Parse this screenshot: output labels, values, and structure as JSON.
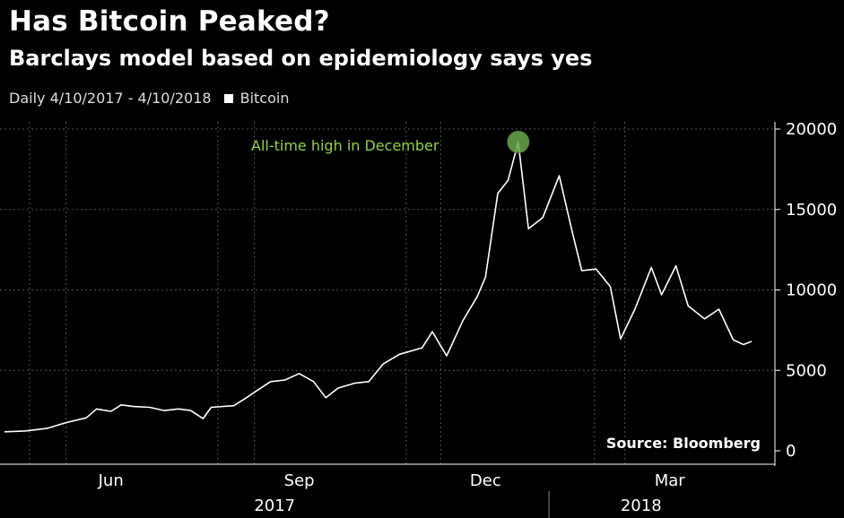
{
  "header": {
    "title": "Has Bitcoin Peaked?",
    "subtitle": "Barclays model based on epidemiology says yes",
    "range_label": "Daily 4/10/2017 - 4/10/2018",
    "legend_label": "Bitcoin"
  },
  "annotation": {
    "text": "All-time high in December",
    "color": "#8fd14f"
  },
  "source": "Source: Bloomberg",
  "colors": {
    "background": "#000000",
    "line": "#ffffff",
    "grid": "#555555",
    "highlight": "#6aa84f"
  },
  "chart_data": {
    "type": "line",
    "title": "Has Bitcoin Peaked?",
    "subtitle": "Barclays model based on epidemiology says yes",
    "x_range": [
      "2017-04-10",
      "2018-04-10"
    ],
    "ylim": [
      0,
      20000
    ],
    "y_ticks": [
      "0",
      "5000",
      "10000",
      "15000",
      "20000"
    ],
    "y_tick_values": [
      0,
      5000,
      10000,
      15000,
      20000
    ],
    "x_month_labels": [
      {
        "label": "Jun",
        "date": "2017-06-01"
      },
      {
        "label": "Sep",
        "date": "2017-09-01"
      },
      {
        "label": "Dec",
        "date": "2017-12-01"
      },
      {
        "label": "Mar",
        "date": "2018-03-01"
      }
    ],
    "x_year_labels": [
      {
        "label": "2017",
        "date": "2017-08-20"
      },
      {
        "label": "2018",
        "date": "2018-02-15"
      }
    ],
    "grid": true,
    "legend_position": "top-left",
    "series": [
      {
        "name": "Bitcoin",
        "points": [
          [
            "2017-04-10",
            1180
          ],
          [
            "2017-04-20",
            1230
          ],
          [
            "2017-05-01",
            1400
          ],
          [
            "2017-05-10",
            1750
          ],
          [
            "2017-05-20",
            2050
          ],
          [
            "2017-05-25",
            2600
          ],
          [
            "2017-06-01",
            2450
          ],
          [
            "2017-06-06",
            2850
          ],
          [
            "2017-06-12",
            2750
          ],
          [
            "2017-06-20",
            2700
          ],
          [
            "2017-06-27",
            2500
          ],
          [
            "2017-07-04",
            2600
          ],
          [
            "2017-07-10",
            2500
          ],
          [
            "2017-07-16",
            2000
          ],
          [
            "2017-07-20",
            2700
          ],
          [
            "2017-07-31",
            2800
          ],
          [
            "2017-08-05",
            3200
          ],
          [
            "2017-08-12",
            3800
          ],
          [
            "2017-08-18",
            4300
          ],
          [
            "2017-08-25",
            4400
          ],
          [
            "2017-09-01",
            4800
          ],
          [
            "2017-09-08",
            4300
          ],
          [
            "2017-09-14",
            3300
          ],
          [
            "2017-09-20",
            3900
          ],
          [
            "2017-09-28",
            4200
          ],
          [
            "2017-10-05",
            4300
          ],
          [
            "2017-10-12",
            5400
          ],
          [
            "2017-10-20",
            6000
          ],
          [
            "2017-10-31",
            6400
          ],
          [
            "2017-11-05",
            7400
          ],
          [
            "2017-11-12",
            5900
          ],
          [
            "2017-11-20",
            8100
          ],
          [
            "2017-11-27",
            9600
          ],
          [
            "2017-12-01",
            10800
          ],
          [
            "2017-12-07",
            16000
          ],
          [
            "2017-12-12",
            16800
          ],
          [
            "2017-12-17",
            19200
          ],
          [
            "2017-12-22",
            13800
          ],
          [
            "2017-12-29",
            14500
          ],
          [
            "2018-01-06",
            17100
          ],
          [
            "2018-01-12",
            13800
          ],
          [
            "2018-01-17",
            11200
          ],
          [
            "2018-01-24",
            11300
          ],
          [
            "2018-01-31",
            10200
          ],
          [
            "2018-02-05",
            6950
          ],
          [
            "2018-02-12",
            8800
          ],
          [
            "2018-02-20",
            11400
          ],
          [
            "2018-02-25",
            9700
          ],
          [
            "2018-03-04",
            11500
          ],
          [
            "2018-03-10",
            9000
          ],
          [
            "2018-03-18",
            8200
          ],
          [
            "2018-03-25",
            8800
          ],
          [
            "2018-04-01",
            6900
          ],
          [
            "2018-04-06",
            6600
          ],
          [
            "2018-04-10",
            6800
          ]
        ]
      }
    ],
    "peak": {
      "date": "2017-12-17",
      "value": 19200
    }
  }
}
